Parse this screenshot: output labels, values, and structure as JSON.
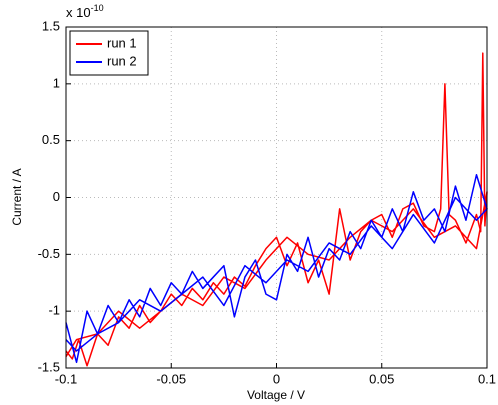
{
  "chart_data": {
    "type": "line",
    "x_label": "Voltage / V",
    "y_label": "Current / A",
    "y_scale_label": "x 10",
    "y_scale_power": "-10",
    "xlim": [
      -0.1,
      0.1
    ],
    "ylim": [
      -1.5,
      1.5
    ],
    "xticks": [
      -0.1,
      -0.05,
      0,
      0.05,
      0.1
    ],
    "yticks": [
      -1.5,
      -1,
      -0.5,
      0,
      0.5,
      1,
      1.5
    ],
    "grid": true,
    "legend": "top-left",
    "series": [
      {
        "name": "run 1",
        "color": "#ff0000",
        "x": [
          -0.1,
          -0.097,
          -0.094,
          -0.09,
          -0.085,
          -0.08,
          -0.075,
          -0.07,
          -0.065,
          -0.06,
          -0.055,
          -0.05,
          -0.045,
          -0.04,
          -0.035,
          -0.03,
          -0.025,
          -0.02,
          -0.015,
          -0.01,
          -0.005,
          0,
          0.005,
          0.01,
          0.015,
          0.02,
          0.025,
          0.03,
          0.035,
          0.04,
          0.045,
          0.05,
          0.055,
          0.06,
          0.065,
          0.07,
          0.075,
          0.078,
          0.08,
          0.082,
          0.085,
          0.09,
          0.095,
          0.097,
          0.098,
          0.099,
          0.1,
          0.095,
          0.085,
          0.075,
          0.065,
          0.055,
          0.045,
          0.035,
          0.025,
          0.015,
          0.005,
          -0.005,
          -0.015,
          -0.025,
          -0.035,
          -0.045,
          -0.055,
          -0.065,
          -0.075,
          -0.085,
          -0.095,
          -0.1
        ],
        "values": [
          -1.35,
          -1.42,
          -1.25,
          -1.48,
          -1.2,
          -1.3,
          -1.05,
          -1.15,
          -0.95,
          -1.1,
          -1.0,
          -0.85,
          -0.95,
          -0.8,
          -0.9,
          -0.75,
          -0.85,
          -0.7,
          -0.78,
          -0.6,
          -0.45,
          -0.35,
          -0.6,
          -0.4,
          -0.75,
          -0.55,
          -0.85,
          -0.1,
          -0.55,
          -0.3,
          -0.2,
          -0.15,
          -0.35,
          -0.1,
          -0.05,
          -0.25,
          -0.3,
          -0.1,
          1.0,
          -0.15,
          -0.2,
          -0.4,
          -0.15,
          -0.3,
          1.27,
          -0.25,
          0.05,
          -0.45,
          -0.25,
          -0.35,
          -0.1,
          -0.3,
          -0.2,
          -0.35,
          -0.55,
          -0.5,
          -0.35,
          -0.55,
          -0.8,
          -0.7,
          -0.95,
          -0.85,
          -1.0,
          -1.15,
          -1.0,
          -1.2,
          -1.25,
          -1.4
        ]
      },
      {
        "name": "run 2",
        "color": "#0000ff",
        "x": [
          -0.1,
          -0.095,
          -0.09,
          -0.085,
          -0.08,
          -0.075,
          -0.07,
          -0.065,
          -0.06,
          -0.055,
          -0.05,
          -0.045,
          -0.04,
          -0.035,
          -0.03,
          -0.025,
          -0.02,
          -0.015,
          -0.01,
          -0.005,
          0,
          0.005,
          0.01,
          0.015,
          0.02,
          0.025,
          0.03,
          0.035,
          0.04,
          0.045,
          0.05,
          0.055,
          0.06,
          0.065,
          0.07,
          0.075,
          0.08,
          0.085,
          0.09,
          0.095,
          0.1,
          0.095,
          0.085,
          0.075,
          0.065,
          0.055,
          0.045,
          0.035,
          0.025,
          0.015,
          0.005,
          -0.005,
          -0.015,
          -0.025,
          -0.035,
          -0.045,
          -0.055,
          -0.065,
          -0.075,
          -0.085,
          -0.095,
          -0.1
        ],
        "values": [
          -1.1,
          -1.45,
          -1.0,
          -1.2,
          -0.95,
          -1.1,
          -0.9,
          -1.05,
          -0.8,
          -0.95,
          -0.75,
          -0.85,
          -0.65,
          -0.8,
          -0.7,
          -0.6,
          -1.05,
          -0.7,
          -0.55,
          -0.85,
          -0.9,
          -0.5,
          -0.65,
          -0.35,
          -0.7,
          -0.45,
          -0.55,
          -0.3,
          -0.45,
          -0.2,
          -0.35,
          -0.1,
          -0.3,
          0.05,
          -0.2,
          -0.1,
          -0.3,
          0.1,
          -0.2,
          0.2,
          -0.1,
          -0.2,
          0.0,
          -0.4,
          -0.15,
          -0.45,
          -0.25,
          -0.5,
          -0.4,
          -0.65,
          -0.55,
          -0.75,
          -0.6,
          -0.95,
          -0.7,
          -0.85,
          -1.0,
          -0.9,
          -1.1,
          -1.2,
          -1.35,
          -1.25
        ]
      }
    ]
  }
}
